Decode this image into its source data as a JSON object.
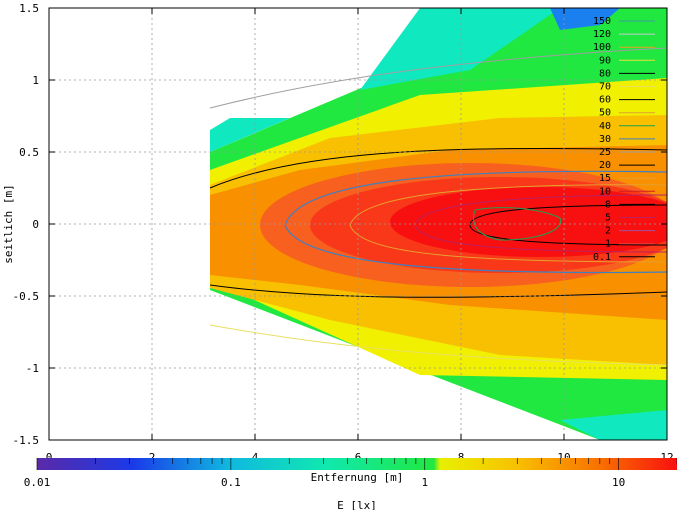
{
  "chart_data": {
    "type": "heatmap",
    "xlabel": "Entfernung [m]",
    "ylabel": "seitlich [m]",
    "x_ticks": [
      "0",
      "2",
      "4",
      "6",
      "8",
      "10",
      "12"
    ],
    "y_ticks": [
      "1.5",
      "1",
      "0.5",
      "0",
      "-0.5",
      "-1",
      "-1.5"
    ],
    "xlim": [
      0,
      12
    ],
    "ylim": [
      -1.5,
      1.5
    ],
    "grid": true,
    "colorbar": {
      "label": "E [lx]",
      "scale": "log",
      "range": [
        0.01,
        20
      ],
      "ticks": [
        "0.01",
        "0.1",
        "1",
        "10"
      ]
    },
    "contour_levels": [
      "150",
      "120",
      "100",
      "90",
      "80",
      "70",
      "60",
      "50",
      "40",
      "30",
      "25",
      "20",
      "15",
      "10",
      "8",
      "5",
      "2",
      "1",
      "0.1"
    ],
    "contour_colors": [
      "#3aa0a0",
      "#c8c8c8",
      "#e8a020",
      "#e8e040",
      "#000000",
      "#e8e060",
      "#000000",
      "#e0a030",
      "#20a050",
      "#4080c0",
      "#a0a0a0",
      "#000000",
      "#e8a030",
      "#d02020",
      "#000000",
      "#c02060",
      "#a050a0",
      "#e04040",
      "#000000"
    ],
    "colormap": [
      "#4a2aa8",
      "#1a3ae8",
      "#1a80f0",
      "#10c8d8",
      "#10e8b0",
      "#20e840",
      "#e8f000",
      "#f8d000",
      "#f8a000",
      "#f87000",
      "#f83000",
      "#f81010"
    ]
  }
}
